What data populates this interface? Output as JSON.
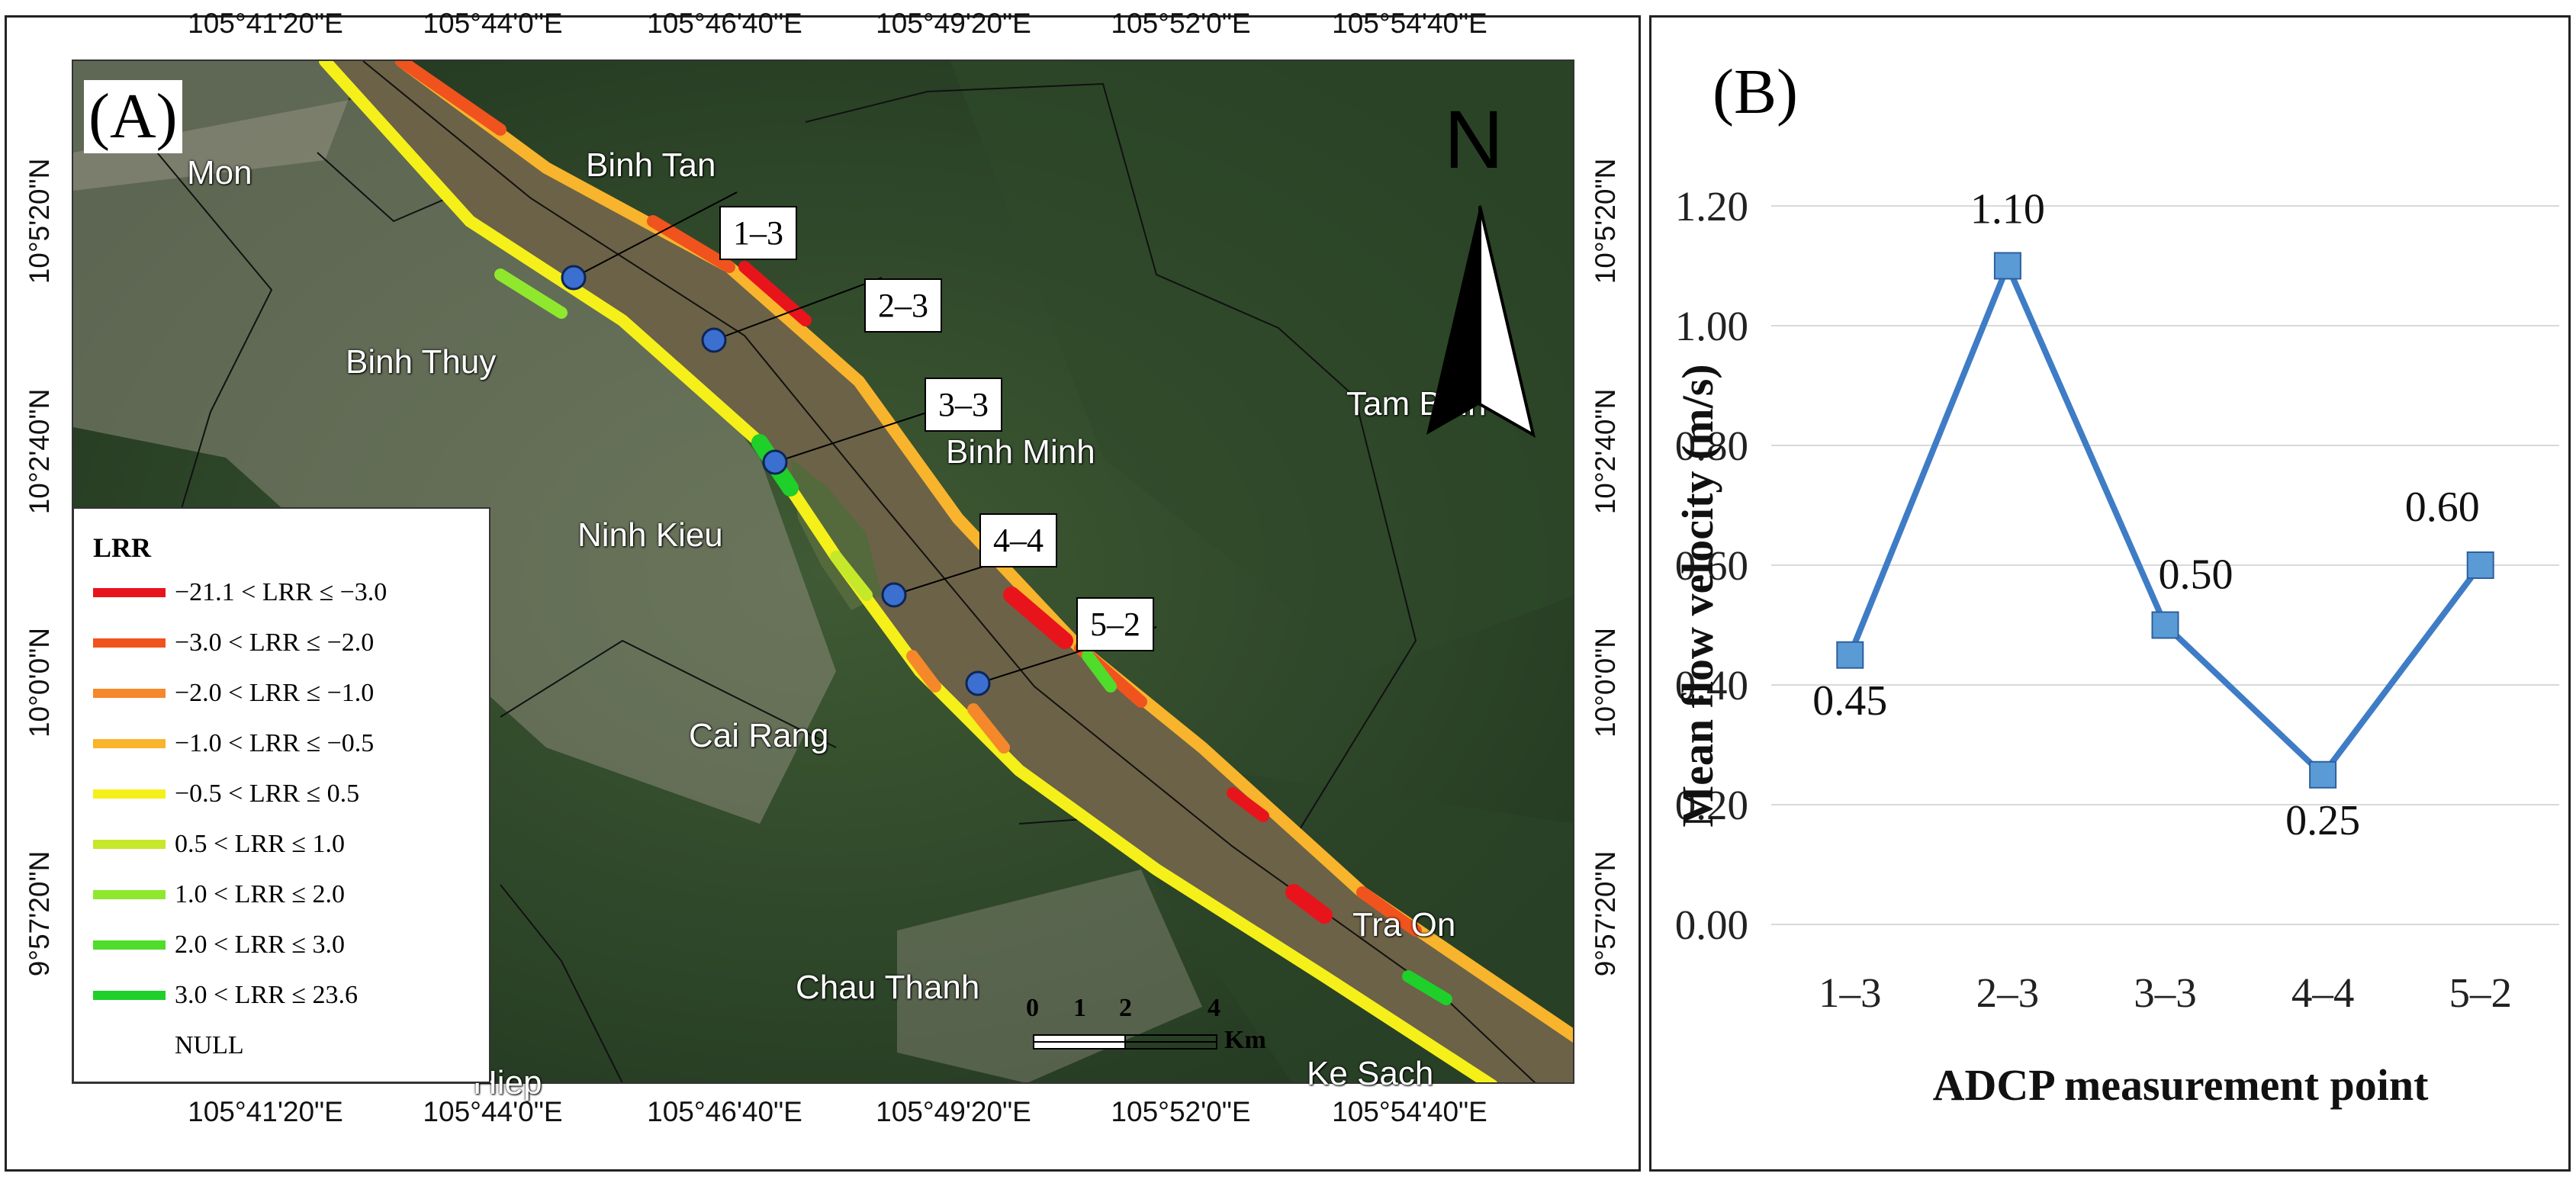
{
  "panel_a": {
    "label": "(A)",
    "coords": {
      "top": [
        "105°41'20\"E",
        "105°44'0\"E",
        "105°46'40\"E",
        "105°49'20\"E",
        "105°52'0\"E",
        "105°54'40\"E"
      ],
      "bottom": [
        "105°41'20\"E",
        "105°44'0\"E",
        "105°46'40\"E",
        "105°49'20\"E",
        "105°52'0\"E",
        "105°54'40\"E"
      ],
      "left": [
        "10°5'20\"N",
        "10°2'40\"N",
        "10°0'0\"N",
        "9°57'20\"N"
      ],
      "right": [
        "10°5'20\"N",
        "10°2'40\"N",
        "10°0'0\"N",
        "9°57'20\"N"
      ]
    },
    "places": {
      "o_mon": "Mon",
      "binh_tan": "Binh Tan",
      "binh_thuy": "Binh Thuy",
      "tam_binh": "Tam Binh",
      "binh_minh": "Binh Minh",
      "ninh_kieu": "Ninh Kieu",
      "cai_rang": "Cai Rang",
      "tra_on": "Tra On",
      "chau_thanh": "Chau Thanh",
      "ke_sach": "Ke Sach",
      "hiep": "Hiep"
    },
    "callouts": [
      "1–3",
      "2–3",
      "3–3",
      "4–4",
      "5–2"
    ],
    "north": "N",
    "scale": {
      "ticks": [
        "0",
        "1",
        "2",
        "4"
      ],
      "unit": "Km"
    },
    "legend": {
      "title": "LRR",
      "items": [
        {
          "label": "−21.1 < LRR ≤ −3.0",
          "color": "#e8141c"
        },
        {
          "label": "−3.0 < LRR ≤ −2.0",
          "color": "#f0531e"
        },
        {
          "label": "−2.0 < LRR ≤ −1.0",
          "color": "#f5882a"
        },
        {
          "label": "−1.0 < LRR ≤ −0.5",
          "color": "#f8b42c"
        },
        {
          "label": "−0.5 < LRR ≤ 0.5",
          "color": "#f5f01a"
        },
        {
          "label": "0.5 < LRR ≤ 1.0",
          "color": "#c6e82a"
        },
        {
          "label": "1.0 < LRR ≤ 2.0",
          "color": "#8fe82d"
        },
        {
          "label": "2.0 < LRR ≤ 3.0",
          "color": "#4fdc2a"
        },
        {
          "label": "3.0 < LRR ≤ 23.6",
          "color": "#1fcf2a"
        },
        {
          "label": "NULL",
          "color": ""
        }
      ]
    }
  },
  "panel_b": {
    "label": "(B)"
  },
  "chart_data": {
    "type": "line",
    "categories": [
      "1–3",
      "2–3",
      "3–3",
      "4–4",
      "5–2"
    ],
    "series": [
      {
        "values": [
          0.45,
          1.1,
          0.5,
          0.25,
          0.6
        ]
      }
    ],
    "data_labels": [
      "0.45",
      "1.10",
      "0.50",
      "0.25",
      "0.60"
    ],
    "xlabel": "ADCP measurement point",
    "ylabel": "Mean flow velocity (m/s)",
    "yticks": [
      "0.00",
      "0.20",
      "0.40",
      "0.60",
      "0.80",
      "1.00",
      "1.20"
    ],
    "ylim": [
      0,
      1.2
    ],
    "grid": true,
    "line_color": "#3f7cc6",
    "marker_color": "#5b9bd5"
  }
}
